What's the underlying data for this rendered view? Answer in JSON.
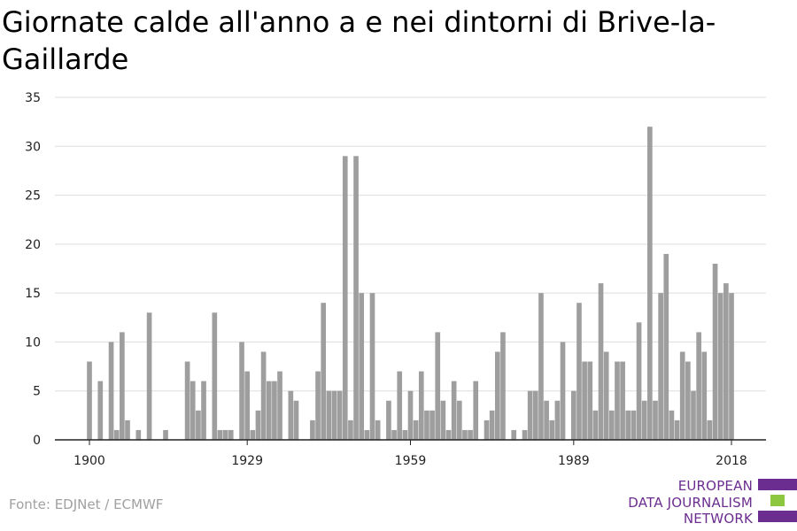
{
  "title": "Giornate calde all'anno a e nei dintorni di Brive-la-Gaillarde",
  "source": "Fonte: EDJNet / ECMWF",
  "logo": {
    "line1": "EUROPEAN",
    "line2": "DATA JOURNALISM",
    "line3": "NETWORK"
  },
  "colors": {
    "bar": "#9e9e9e",
    "grid": "#dddddd",
    "axis": "#222222",
    "logo_purple": "#6b2d8f",
    "logo_green": "#8dc63f"
  },
  "chart_data": {
    "type": "bar",
    "title": "Giornate calde all'anno a e nei dintorni di Brive-la-Gaillarde",
    "xlabel": "",
    "ylabel": "",
    "xlim": [
      1900,
      2018
    ],
    "ylim": [
      0,
      35
    ],
    "yticks": [
      0,
      5,
      10,
      15,
      20,
      25,
      30,
      35
    ],
    "xticks": [
      1900,
      1929,
      1959,
      1989,
      2018
    ],
    "grid": true,
    "x": [
      1900,
      1901,
      1902,
      1903,
      1904,
      1905,
      1906,
      1907,
      1908,
      1909,
      1910,
      1911,
      1912,
      1913,
      1914,
      1915,
      1916,
      1917,
      1918,
      1919,
      1920,
      1921,
      1922,
      1923,
      1924,
      1925,
      1926,
      1927,
      1928,
      1929,
      1930,
      1931,
      1932,
      1933,
      1934,
      1935,
      1936,
      1937,
      1938,
      1939,
      1940,
      1941,
      1942,
      1943,
      1944,
      1945,
      1946,
      1947,
      1948,
      1949,
      1950,
      1951,
      1952,
      1953,
      1954,
      1955,
      1956,
      1957,
      1958,
      1959,
      1960,
      1961,
      1962,
      1963,
      1964,
      1965,
      1966,
      1967,
      1968,
      1969,
      1970,
      1971,
      1972,
      1973,
      1974,
      1975,
      1976,
      1977,
      1978,
      1979,
      1980,
      1981,
      1982,
      1983,
      1984,
      1985,
      1986,
      1987,
      1988,
      1989,
      1990,
      1991,
      1992,
      1993,
      1994,
      1995,
      1996,
      1997,
      1998,
      1999,
      2000,
      2001,
      2002,
      2003,
      2004,
      2005,
      2006,
      2007,
      2008,
      2009,
      2010,
      2011,
      2012,
      2013,
      2014,
      2015,
      2016,
      2017,
      2018
    ],
    "values": [
      8,
      0,
      6,
      0,
      10,
      1,
      11,
      2,
      0,
      1,
      0,
      13,
      0,
      0,
      1,
      0,
      0,
      0,
      8,
      6,
      3,
      6,
      0,
      13,
      1,
      1,
      1,
      0,
      10,
      7,
      1,
      3,
      9,
      6,
      6,
      7,
      0,
      5,
      4,
      0,
      0,
      2,
      7,
      14,
      5,
      5,
      5,
      29,
      2,
      29,
      15,
      1,
      15,
      2,
      0,
      4,
      1,
      7,
      1,
      5,
      2,
      7,
      3,
      3,
      11,
      4,
      1,
      6,
      4,
      1,
      1,
      6,
      0,
      2,
      3,
      9,
      11,
      0,
      1,
      0,
      1,
      5,
      5,
      15,
      4,
      2,
      4,
      10,
      0,
      5,
      14,
      8,
      8,
      3,
      16,
      9,
      3,
      8,
      8,
      3,
      3,
      12,
      4,
      32,
      4,
      15,
      19,
      3,
      2,
      9,
      8,
      5,
      11,
      9,
      2,
      18,
      15,
      16,
      15
    ]
  }
}
